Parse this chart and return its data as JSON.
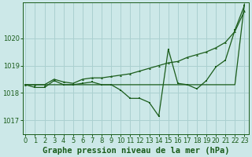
{
  "title": "Graphe pression niveau de la mer (hPa)",
  "bg_color": "#cce8e8",
  "grid_color": "#aad0d0",
  "line_color": "#1a5c1a",
  "x_ticks": [
    0,
    1,
    2,
    3,
    4,
    5,
    6,
    7,
    8,
    9,
    10,
    11,
    12,
    13,
    14,
    15,
    16,
    17,
    18,
    19,
    20,
    21,
    22,
    23
  ],
  "y_ticks": [
    1017,
    1018,
    1019,
    1020
  ],
  "ylim": [
    1016.5,
    1021.3
  ],
  "xlim": [
    -0.3,
    23.5
  ],
  "title_fontsize": 7.5,
  "tick_fontsize": 6.0,
  "trend_line": [
    1018.3,
    1018.3,
    1018.3,
    1018.3,
    1018.3,
    1018.3,
    1018.3,
    1018.3,
    1018.3,
    1018.3,
    1018.3,
    1018.3,
    1018.3,
    1018.3,
    1018.3,
    1018.3,
    1018.3,
    1018.3,
    1018.3,
    1018.3,
    1018.3,
    1018.3,
    1018.3,
    1021.25
  ],
  "mid_line": [
    1018.3,
    1018.3,
    1018.3,
    1018.5,
    1018.4,
    1018.35,
    1018.5,
    1018.55,
    1018.55,
    1018.6,
    1018.65,
    1018.7,
    1018.8,
    1018.9,
    1019.0,
    1019.1,
    1019.15,
    1019.3,
    1019.4,
    1019.5,
    1019.65,
    1019.85,
    1020.25,
    1021.0
  ],
  "detail_line": [
    1018.3,
    1018.2,
    1018.2,
    1018.45,
    1018.3,
    1018.3,
    1018.35,
    1018.4,
    1018.3,
    1018.3,
    1018.1,
    1017.8,
    1017.8,
    1017.65,
    1017.15,
    1019.6,
    1018.35,
    1018.3,
    1018.15,
    1018.45,
    1018.95,
    1019.2,
    1020.3,
    1021.2
  ]
}
